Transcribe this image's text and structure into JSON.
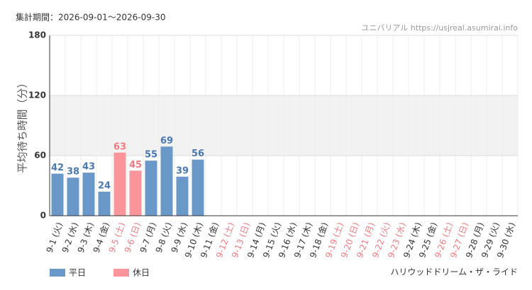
{
  "chart_data": {
    "type": "bar",
    "title": "集計期間：2026-09-01～2026-09-30",
    "source": "ユニバリアル https://usjreal.asumirai.info",
    "footer": "ハリウッドドリーム・ザ・ライド",
    "ylabel": "平均待ち時間（分）",
    "ylim": [
      0,
      180
    ],
    "yticks": [
      0,
      60,
      120,
      180
    ],
    "grid": true,
    "categories": [
      "9-1 (火)",
      "9-2 (水)",
      "9-3 (木)",
      "9-4 (金)",
      "9-5 (土)",
      "9-6 (日)",
      "9-7 (月)",
      "9-8 (火)",
      "9-9 (水)",
      "9-10 (木)",
      "9-11 (金)",
      "9-12 (土)",
      "9-13 (日)",
      "9-14 (月)",
      "9-15 (火)",
      "9-16 (水)",
      "9-17 (木)",
      "9-18 (金)",
      "9-19 (土)",
      "9-20 (日)",
      "9-21 (月)",
      "9-22 (火)",
      "9-23 (水)",
      "9-24 (木)",
      "9-25 (金)",
      "9-26 (土)",
      "9-27 (日)",
      "9-28 (月)",
      "9-29 (火)",
      "9-30 (水)"
    ],
    "category_colors": [
      "#333",
      "#333",
      "#333",
      "#333",
      "#f07a80",
      "#f07a80",
      "#333",
      "#333",
      "#333",
      "#333",
      "#333",
      "#f07a80",
      "#f07a80",
      "#333",
      "#333",
      "#333",
      "#333",
      "#333",
      "#f07a80",
      "#f07a80",
      "#f07a80",
      "#f07a80",
      "#f07a80",
      "#333",
      "#333",
      "#f07a80",
      "#f07a80",
      "#333",
      "#333",
      "#333"
    ],
    "series": [
      {
        "name": "平日",
        "color": "#6a98c8",
        "label_color": "#4a78b0",
        "values": [
          42,
          38,
          43,
          24,
          null,
          null,
          55,
          69,
          39,
          56,
          null,
          null,
          null,
          null,
          null,
          null,
          null,
          null,
          null,
          null,
          null,
          null,
          null,
          null,
          null,
          null,
          null,
          null,
          null,
          null
        ]
      },
      {
        "name": "休日",
        "color": "#fb959b",
        "label_color": "#f07a80",
        "values": [
          null,
          null,
          null,
          null,
          63,
          45,
          null,
          null,
          null,
          null,
          null,
          null,
          null,
          null,
          null,
          null,
          null,
          null,
          null,
          null,
          null,
          null,
          null,
          null,
          null,
          null,
          null,
          null,
          null,
          null
        ]
      }
    ]
  }
}
